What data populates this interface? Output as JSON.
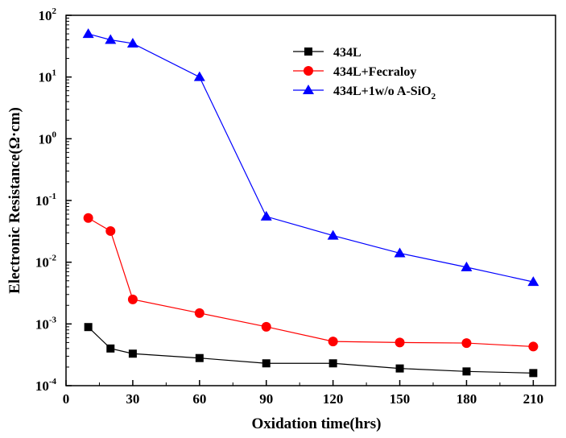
{
  "chart_data": {
    "type": "line",
    "title": "",
    "xlabel": "Oxidation time(hrs)",
    "ylabel": "Electronic Resistance(Ω·cm)",
    "yscale": "log",
    "xlim": [
      0,
      220
    ],
    "ylim": [
      0.0001,
      100
    ],
    "x_ticks": [
      0,
      30,
      60,
      90,
      120,
      150,
      180,
      210
    ],
    "y_ticks": [
      {
        "value": 0.0001,
        "base": "10",
        "exp": "-4"
      },
      {
        "value": 0.001,
        "base": "10",
        "exp": "-3"
      },
      {
        "value": 0.01,
        "base": "10",
        "exp": "-2"
      },
      {
        "value": 0.1,
        "base": "10",
        "exp": "-1"
      },
      {
        "value": 1,
        "base": "10",
        "exp": "0"
      },
      {
        "value": 10,
        "base": "10",
        "exp": "1"
      },
      {
        "value": 100,
        "base": "10",
        "exp": "2"
      }
    ],
    "legend_position": "top-right",
    "x": [
      10,
      20,
      30,
      60,
      90,
      120,
      150,
      180,
      210
    ],
    "series": [
      {
        "name": "434L",
        "label_main": "434L",
        "label_sub": "",
        "color": "#000000",
        "marker": "square",
        "values": [
          0.00089,
          0.0004,
          0.00033,
          0.00028,
          0.00023,
          0.00023,
          0.00019,
          0.00017,
          0.00016
        ]
      },
      {
        "name": "434L+Fecraloy",
        "label_main": "434L+Fecraloy",
        "label_sub": "",
        "color": "#ff0000",
        "marker": "circle",
        "values": [
          0.052,
          0.032,
          0.0025,
          0.0015,
          0.0009,
          0.00052,
          0.0005,
          0.00049,
          0.00043
        ]
      },
      {
        "name": "434L+1w/o A-SiO2",
        "label_main": "434L+1w/o A-SiO",
        "label_sub": "2",
        "color": "#0000ff",
        "marker": "triangle",
        "values": [
          50,
          40,
          35,
          10,
          0.055,
          0.027,
          0.014,
          0.0083,
          0.0048
        ]
      }
    ]
  }
}
